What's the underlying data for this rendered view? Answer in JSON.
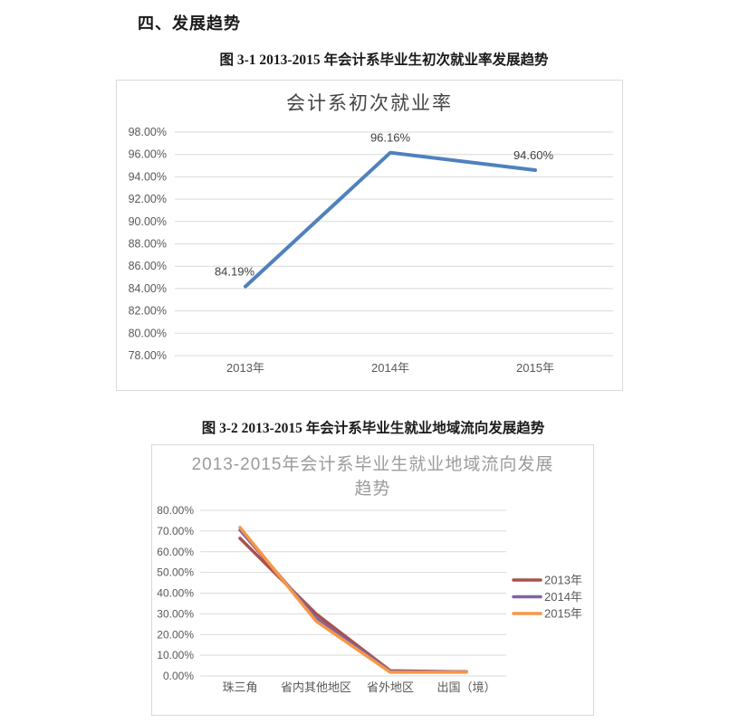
{
  "page": {
    "section_heading": "四、发展趋势",
    "figure1_caption": "图 3-1 2013-2015 年会计系毕业生初次就业率发展趋势",
    "figure2_caption": "图 3-2 2013-2015 年会计系毕业生就业地域流向发展趋势"
  },
  "colors": {
    "chart1_line": "#4F81BD",
    "series_2013": "#A9504B",
    "series_2014": "#8064A2",
    "series_2015": "#F79646",
    "gridline": "#D9D9D9",
    "chart_border": "#D9D9D9",
    "tick_text": "#595959",
    "data_label_text": "#404040",
    "chart1_title_text": "#454545",
    "chart2_title_text": "#9B9B9B"
  },
  "chart_data": [
    {
      "type": "line",
      "title": "会计系初次就业率",
      "categories": [
        "2013年",
        "2014年",
        "2015年"
      ],
      "series": [
        {
          "name": "初次就业率",
          "color": "#4F81BD",
          "values": [
            84.19,
            96.16,
            94.6
          ]
        }
      ],
      "data_labels": [
        "84.19%",
        "96.16%",
        "94.60%"
      ],
      "ylim": [
        78,
        98
      ],
      "ytick_step": 2,
      "ytick_suffix": "%",
      "grid": true,
      "legend": "none"
    },
    {
      "type": "line",
      "title": "2013-2015年会计系毕业生就业地域流向发展趋势",
      "title_lines": [
        "2013-2015年会计系毕业生就业地域流向发展",
        "趋势"
      ],
      "categories": [
        "珠三角",
        "省内其他地区",
        "省外地区",
        "出国（境）"
      ],
      "series": [
        {
          "name": "2013年",
          "color": "#A9504B",
          "values": [
            66.5,
            30.0,
            2.5,
            2.0
          ]
        },
        {
          "name": "2014年",
          "color": "#8064A2",
          "values": [
            70.5,
            28.0,
            2.2,
            2.0
          ]
        },
        {
          "name": "2015年",
          "color": "#F79646",
          "values": [
            71.8,
            26.5,
            1.8,
            1.8
          ]
        }
      ],
      "ylim": [
        0,
        80
      ],
      "ytick_step": 10,
      "ytick_suffix": "%",
      "grid": true,
      "legend": "right"
    }
  ]
}
